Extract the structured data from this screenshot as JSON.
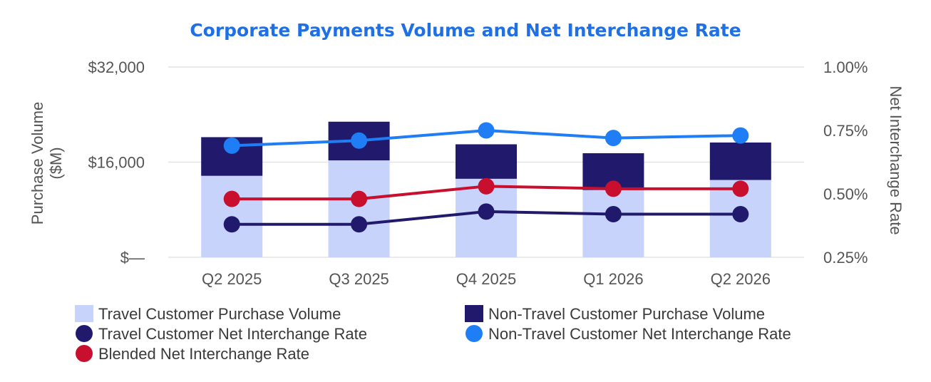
{
  "chart_data": {
    "type": "bar",
    "title": "Corporate Payments Volume and Net Interchange Rate",
    "categories": [
      "Q2 2025",
      "Q3 2025",
      "Q4 2025",
      "Q1 2026",
      "Q2 2026"
    ],
    "left_axis": {
      "label_line1": "Purchase Volume",
      "label_line2": "($M)",
      "ticks": [
        {
          "value": 0,
          "label": "$—"
        },
        {
          "value": 16000,
          "label": "$16,000"
        },
        {
          "value": 32000,
          "label": "$32,000"
        }
      ],
      "range": [
        0,
        32000
      ]
    },
    "right_axis": {
      "label": "Net Interchange Rate",
      "ticks": [
        {
          "value": 0.25,
          "label": "0.25%"
        },
        {
          "value": 0.5,
          "label": "0.50%"
        },
        {
          "value": 0.75,
          "label": "0.75%"
        },
        {
          "value": 1.0,
          "label": "1.00%"
        }
      ],
      "range": [
        0.25,
        1.0
      ]
    },
    "grid": true,
    "legend_position": "bottom",
    "bar_series": [
      {
        "name": "Travel Customer Purchase Volume",
        "color": "#c7d3fb",
        "values": [
          13700,
          16300,
          13200,
          11300,
          13000
        ]
      },
      {
        "name": "Non-Travel Customer Purchase Volume",
        "color": "#211a6c",
        "values": [
          6500,
          6500,
          5800,
          6200,
          6300
        ]
      }
    ],
    "line_series": [
      {
        "name": "Travel Customer Net Interchange Rate",
        "color": "#211a6c",
        "values": [
          0.38,
          0.38,
          0.43,
          0.42,
          0.42
        ]
      },
      {
        "name": "Non-Travel Customer Net Interchange Rate",
        "color": "#1f7df5",
        "values": [
          0.69,
          0.71,
          0.75,
          0.72,
          0.73
        ]
      },
      {
        "name": "Blended Net Interchange Rate",
        "color": "#c8102e",
        "values": [
          0.48,
          0.48,
          0.53,
          0.52,
          0.52
        ]
      }
    ]
  }
}
